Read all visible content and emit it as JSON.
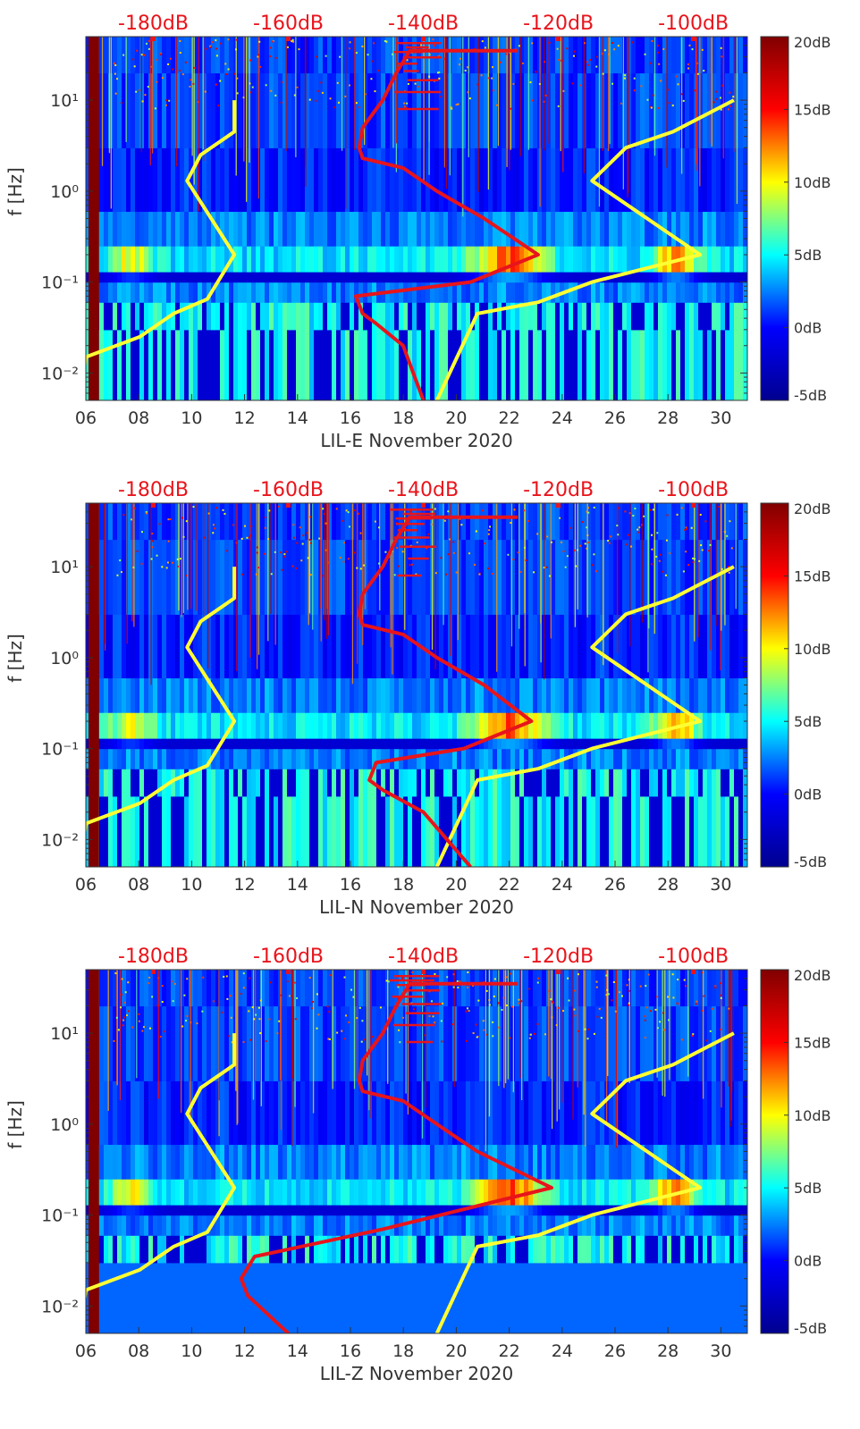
{
  "figure": {
    "title": ""
  },
  "colormap": {
    "name": "jet",
    "stops": [
      "#00008f",
      "#0000ff",
      "#00ffff",
      "#ffff00",
      "#ff0000",
      "#800000"
    ],
    "limits": [
      -5,
      20
    ],
    "tick_values": [
      -5,
      0,
      5,
      10,
      15,
      20
    ],
    "tick_labels": [
      "-5dB",
      "0dB",
      "5dB",
      "10dB",
      "15dB",
      "20dB"
    ]
  },
  "colors": {
    "axis": "#333333",
    "top_axis": "#e8141b",
    "model_lines": "#ffff33",
    "station_line": "#e8141b",
    "band": "#800000"
  },
  "chart_data": [
    {
      "type": "heatmap",
      "panel": "LIL-E",
      "xlabel": "LIL-E November 2020",
      "ylabel": "f [Hz]",
      "xlim": [
        6,
        31
      ],
      "ylim": [
        0.005,
        50
      ],
      "yscale": "log",
      "x_ticks": [
        6,
        8,
        10,
        12,
        14,
        16,
        18,
        20,
        22,
        24,
        26,
        28,
        30
      ],
      "x_tick_labels": [
        "06",
        "08",
        "10",
        "12",
        "14",
        "16",
        "18",
        "20",
        "22",
        "24",
        "26",
        "28",
        "30"
      ],
      "y_ticks": [
        0.01,
        0.1,
        1,
        10
      ],
      "y_tick_labels": [
        "10⁻²",
        "10⁻¹",
        "10⁰",
        "10¹"
      ],
      "top_axis": {
        "xlim": [
          -190,
          -92
        ],
        "ticks": [
          -180,
          -160,
          -140,
          -120,
          -100
        ],
        "labels": [
          "-180dB",
          "-160dB",
          "-140dB",
          "-120dB",
          "-100dB"
        ]
      },
      "model_lines": [
        {
          "name": "low noise model",
          "x_dB": [
            -191,
            -190,
            -182,
            -177,
            -172,
            -168,
            -175,
            -173,
            -168,
            -168
          ],
          "f_hz": [
            0.005,
            0.015,
            0.025,
            0.045,
            0.065,
            0.2,
            1.3,
            2.5,
            4.5,
            10
          ]
        },
        {
          "name": "high noise model",
          "x_dB": [
            -138,
            -132,
            -123,
            -115,
            -99,
            -115,
            -110,
            -103,
            -94
          ],
          "f_hz": [
            0.005,
            0.045,
            0.06,
            0.1,
            0.2,
            1.3,
            3,
            4.5,
            10
          ]
        }
      ],
      "station_line": {
        "name": "station median",
        "x_dB": [
          -140,
          -143,
          -147,
          -149,
          -150,
          -133,
          -123,
          -131,
          -138,
          -143,
          -149,
          -149.5,
          -149,
          -146,
          -144,
          -142,
          -126
        ],
        "f_hz": [
          0.005,
          0.02,
          0.035,
          0.045,
          0.07,
          0.1,
          0.2,
          0.5,
          1,
          1.8,
          2.3,
          3,
          5,
          10,
          20,
          35,
          35
        ]
      },
      "band": {
        "x": [
          6.1,
          6.5
        ],
        "label": ""
      }
    },
    {
      "type": "heatmap",
      "panel": "LIL-N",
      "xlabel": "LIL-N November 2020",
      "ylabel": "f [Hz]",
      "xlim": [
        6,
        31
      ],
      "ylim": [
        0.005,
        50
      ],
      "yscale": "log",
      "x_ticks": [
        6,
        8,
        10,
        12,
        14,
        16,
        18,
        20,
        22,
        24,
        26,
        28,
        30
      ],
      "x_tick_labels": [
        "06",
        "08",
        "10",
        "12",
        "14",
        "16",
        "18",
        "20",
        "22",
        "24",
        "26",
        "28",
        "30"
      ],
      "y_ticks": [
        0.01,
        0.1,
        1,
        10
      ],
      "y_tick_labels": [
        "10⁻²",
        "10⁻¹",
        "10⁰",
        "10¹"
      ],
      "top_axis": {
        "xlim": [
          -190,
          -92
        ],
        "ticks": [
          -180,
          -160,
          -140,
          -120,
          -100
        ],
        "labels": [
          "-180dB",
          "-160dB",
          "-140dB",
          "-120dB",
          "-100dB"
        ]
      },
      "model_lines": [
        {
          "name": "low noise model",
          "x_dB": [
            -191,
            -190,
            -182,
            -177,
            -172,
            -168,
            -175,
            -173,
            -168,
            -168
          ],
          "f_hz": [
            0.005,
            0.015,
            0.025,
            0.045,
            0.065,
            0.2,
            1.3,
            2.5,
            4.5,
            10
          ]
        },
        {
          "name": "high noise model",
          "x_dB": [
            -138,
            -132,
            -123,
            -115,
            -99,
            -115,
            -110,
            -103,
            -94
          ],
          "f_hz": [
            0.005,
            0.045,
            0.06,
            0.1,
            0.2,
            1.3,
            3,
            4.5,
            10
          ]
        }
      ],
      "station_line": {
        "name": "station median",
        "x_dB": [
          -133,
          -140,
          -146,
          -148,
          -147,
          -134,
          -124,
          -131,
          -138,
          -143,
          -149,
          -149.5,
          -149,
          -146,
          -144,
          -142,
          -126
        ],
        "f_hz": [
          0.005,
          0.02,
          0.035,
          0.045,
          0.07,
          0.1,
          0.2,
          0.5,
          1,
          1.8,
          2.3,
          3,
          5,
          10,
          20,
          35,
          35
        ]
      },
      "band": {
        "x": [
          6.1,
          6.5
        ],
        "label": ""
      }
    },
    {
      "type": "heatmap",
      "panel": "LIL-Z",
      "xlabel": "LIL-Z November 2020",
      "ylabel": "f [Hz]",
      "xlim": [
        6,
        31
      ],
      "ylim": [
        0.005,
        50
      ],
      "yscale": "log",
      "x_ticks": [
        6,
        8,
        10,
        12,
        14,
        16,
        18,
        20,
        22,
        24,
        26,
        28,
        30
      ],
      "x_tick_labels": [
        "06",
        "08",
        "10",
        "12",
        "14",
        "16",
        "18",
        "20",
        "22",
        "24",
        "26",
        "28",
        "30"
      ],
      "y_ticks": [
        0.01,
        0.1,
        1,
        10
      ],
      "y_tick_labels": [
        "10⁻²",
        "10⁻¹",
        "10⁰",
        "10¹"
      ],
      "top_axis": {
        "xlim": [
          -190,
          -92
        ],
        "ticks": [
          -180,
          -160,
          -140,
          -120,
          -100
        ],
        "labels": [
          "-180dB",
          "-160dB",
          "-140dB",
          "-120dB",
          "-100dB"
        ]
      },
      "model_lines": [
        {
          "name": "low noise model",
          "x_dB": [
            -191,
            -190,
            -182,
            -177,
            -172,
            -168,
            -175,
            -173,
            -168,
            -168
          ],
          "f_hz": [
            0.005,
            0.015,
            0.025,
            0.045,
            0.065,
            0.2,
            1.3,
            2.5,
            4.5,
            10
          ]
        },
        {
          "name": "high noise model",
          "x_dB": [
            -138,
            -132,
            -123,
            -115,
            -99,
            -115,
            -110,
            -103,
            -94
          ],
          "f_hz": [
            0.005,
            0.045,
            0.06,
            0.1,
            0.2,
            1.3,
            3,
            4.5,
            10
          ]
        }
      ],
      "station_line": {
        "name": "station median",
        "x_dB": [
          -160,
          -166,
          -167,
          -165,
          -146,
          -121,
          -132,
          -138,
          -143,
          -149,
          -149.5,
          -149,
          -146,
          -144,
          -142,
          -126
        ],
        "f_hz": [
          0.005,
          0.013,
          0.02,
          0.035,
          0.07,
          0.2,
          0.5,
          1,
          1.8,
          2.3,
          3,
          5,
          10,
          20,
          35,
          35
        ]
      },
      "band": {
        "x": [
          6.1,
          6.5
        ],
        "label": ""
      }
    }
  ]
}
